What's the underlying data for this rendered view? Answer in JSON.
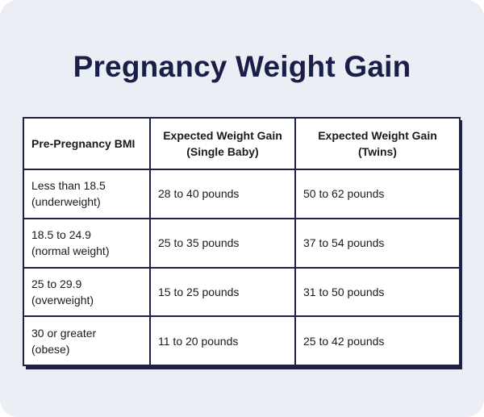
{
  "title": "Pregnancy Weight Gain",
  "table": {
    "headers": {
      "bmi": "Pre-Pregnancy BMI",
      "single_line1": "Expected Weight Gain",
      "single_line2": "(Single Baby)",
      "twins_line1": "Expected Weight Gain",
      "twins_line2": "(Twins)"
    },
    "rows": [
      {
        "bmi_line1": "Less than 18.5",
        "bmi_line2": "(underweight)",
        "single": "28 to 40 pounds",
        "twins": "50 to 62 pounds"
      },
      {
        "bmi_line1": "18.5 to 24.9",
        "bmi_line2": "(normal weight)",
        "single": "25 to 35 pounds",
        "twins": "37 to 54 pounds"
      },
      {
        "bmi_line1": "25 to 29.9",
        "bmi_line2": "(overweight)",
        "single": "15 to 25 pounds",
        "twins": "31 to 50 pounds"
      },
      {
        "bmi_line1": "30 or greater",
        "bmi_line2": "(obese)",
        "single": "11 to 20 pounds",
        "twins": "25 to 42 pounds"
      }
    ]
  },
  "colors": {
    "background": "#eceef6",
    "title": "#1a1f47",
    "border": "#1d2146"
  }
}
